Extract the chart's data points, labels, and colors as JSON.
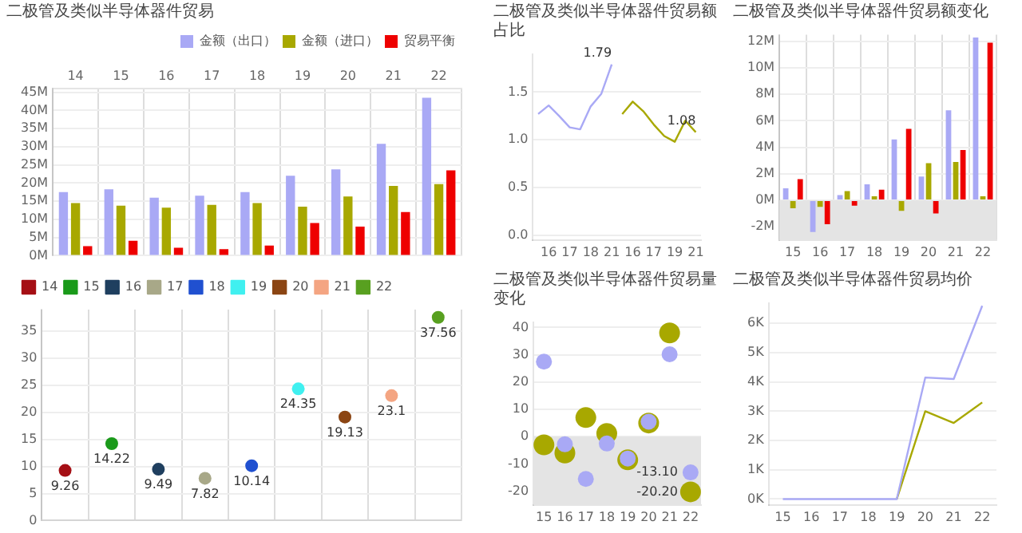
{
  "chart_data": [
    {
      "type": "bar",
      "title": "二极管及类似半导体器件贸易",
      "categories": [
        "14",
        "15",
        "16",
        "17",
        "18",
        "19",
        "20",
        "21",
        "22"
      ],
      "series": [
        {
          "name": "金额（出口）",
          "color": "#a9a9f5",
          "values": [
            17.5,
            18.3,
            16.0,
            16.5,
            17.5,
            22.0,
            23.8,
            30.8,
            43.5
          ]
        },
        {
          "name": "金额（进口）",
          "color": "#a8a800",
          "values": [
            14.5,
            13.8,
            13.2,
            14.0,
            14.5,
            13.5,
            16.3,
            19.2,
            19.7
          ]
        },
        {
          "name": "贸易平衡",
          "color": "#ee0000",
          "values": [
            2.6,
            4.1,
            2.2,
            1.8,
            2.8,
            9.0,
            8.0,
            12.0,
            23.5
          ]
        }
      ],
      "ylim": [
        0,
        46
      ],
      "yticks": [
        {
          "value": 0,
          "label": "0M"
        },
        {
          "value": 5,
          "label": "5M"
        },
        {
          "value": 10,
          "label": "10M"
        },
        {
          "value": 15,
          "label": "15M"
        },
        {
          "value": 20,
          "label": "20M"
        },
        {
          "value": 25,
          "label": "25M"
        },
        {
          "value": 30,
          "label": "30M"
        },
        {
          "value": 35,
          "label": "35M"
        },
        {
          "value": 40,
          "label": "40M"
        },
        {
          "value": 45,
          "label": "45M"
        }
      ],
      "grid": true,
      "legend": "top right"
    },
    {
      "type": "scatter",
      "categories": [
        null,
        null,
        null,
        null,
        null,
        null,
        null,
        null,
        null
      ],
      "series": [
        {
          "name": "14",
          "color": "#a50f15",
          "values": [
            9.26,
            null,
            null,
            null,
            null,
            null,
            null,
            null,
            null
          ]
        },
        {
          "name": "15",
          "color": "#1a9a1a",
          "values": [
            null,
            14.22,
            null,
            null,
            null,
            null,
            null,
            null,
            null
          ]
        },
        {
          "name": "16",
          "color": "#1f3f5f",
          "values": [
            null,
            null,
            9.49,
            null,
            null,
            null,
            null,
            null,
            null
          ]
        },
        {
          "name": "17",
          "color": "#a8a888",
          "values": [
            null,
            null,
            null,
            7.82,
            null,
            null,
            null,
            null,
            null
          ]
        },
        {
          "name": "18",
          "color": "#2050d0",
          "values": [
            null,
            null,
            null,
            null,
            10.14,
            null,
            null,
            null,
            null
          ]
        },
        {
          "name": "19",
          "color": "#40f0f0",
          "values": [
            null,
            null,
            null,
            null,
            null,
            24.35,
            null,
            null,
            null
          ]
        },
        {
          "name": "20",
          "color": "#8b4513",
          "values": [
            null,
            null,
            null,
            null,
            null,
            null,
            19.13,
            null,
            null
          ]
        },
        {
          "name": "21",
          "color": "#f4a582",
          "values": [
            null,
            null,
            null,
            null,
            null,
            null,
            null,
            23.1,
            null
          ]
        },
        {
          "name": "22",
          "color": "#58a020",
          "values": [
            null,
            null,
            null,
            null,
            null,
            null,
            null,
            null,
            37.56
          ]
        }
      ],
      "data_labels": true,
      "ylim": [
        0,
        39
      ],
      "yticks": [
        0,
        5,
        10,
        15,
        20,
        25,
        30,
        35
      ],
      "grid": true,
      "legend": "top left",
      "tick_labels": "y"
    },
    {
      "type": "line",
      "title": "二极管及类似半导体器件贸易额占比",
      "categories": [
        null,
        "16",
        null,
        "17",
        null,
        "18",
        null,
        "21",
        null,
        "16",
        null,
        "17",
        null,
        "19",
        null,
        "21"
      ],
      "series": [
        {
          "color": "#a9a9f5",
          "values": [
            1.27,
            1.36,
            1.25,
            1.13,
            1.11,
            1.35,
            1.48,
            1.79,
            null,
            null,
            null,
            null,
            null,
            null,
            null,
            null
          ],
          "value_labels": [
            null,
            null,
            null,
            null,
            null,
            null,
            null,
            "1.79",
            null,
            null,
            null,
            null,
            null,
            null,
            null,
            null
          ]
        },
        {
          "color": "#a8a800",
          "values": [
            null,
            null,
            null,
            null,
            null,
            null,
            null,
            null,
            1.27,
            1.4,
            1.3,
            1.16,
            1.04,
            0.98,
            1.2,
            1.08
          ],
          "value_labels": [
            null,
            null,
            null,
            null,
            null,
            null,
            null,
            null,
            null,
            null,
            null,
            null,
            null,
            null,
            null,
            "1.08"
          ]
        }
      ],
      "ylim": [
        -0.05,
        1.9
      ],
      "yticks": [
        {
          "value": 0,
          "label": "0.0"
        },
        {
          "value": 0.5,
          "label": "0.5"
        },
        {
          "value": 1,
          "label": "1.0"
        },
        {
          "value": 1.5,
          "label": "1.5"
        }
      ],
      "grid": "y"
    },
    {
      "type": "bar",
      "title": "二极管及类似半导体器件贸易额变化",
      "categories": [
        "15",
        "16",
        "17",
        "18",
        "19",
        "20",
        "21",
        "22"
      ],
      "series": [
        {
          "color": "#a9a9f5",
          "values": [
            0.9,
            -2.4,
            0.4,
            1.2,
            4.6,
            1.8,
            6.8,
            12.3
          ]
        },
        {
          "color": "#a8a800",
          "values": [
            -0.6,
            -0.5,
            0.7,
            0.3,
            -0.8,
            2.8,
            2.9,
            0.3
          ]
        },
        {
          "color": "#ee0000",
          "values": [
            1.6,
            -1.8,
            -0.4,
            0.8,
            5.4,
            -1.0,
            3.8,
            11.9
          ]
        }
      ],
      "ylim": [
        -3,
        12.5
      ],
      "yticks": [
        {
          "value": -2,
          "label": "-2M"
        },
        {
          "value": 0,
          "label": "0M"
        },
        {
          "value": 2,
          "label": "2M"
        },
        {
          "value": 4,
          "label": "4M"
        },
        {
          "value": 6,
          "label": "6M"
        },
        {
          "value": 8,
          "label": "8M"
        },
        {
          "value": 10,
          "label": "10M"
        },
        {
          "value": 12,
          "label": "12M"
        }
      ],
      "bands": [
        {
          "axis": "y",
          "from": -3,
          "to": 0,
          "color": "#e4e4e4"
        }
      ],
      "grid": true
    },
    {
      "type": "scatter",
      "title": "二极管及类似半导体器件贸易量变化",
      "categories": [
        "15",
        "16",
        "17",
        "18",
        "19",
        "20",
        "21",
        "22"
      ],
      "series": [
        {
          "color": "#a9a9f5",
          "values": [
            27.5,
            -2.8,
            -15.5,
            -2.5,
            -8.0,
            5.5,
            30.2,
            -13.1
          ],
          "value_labels": [
            null,
            null,
            null,
            null,
            null,
            null,
            null,
            "-13.10"
          ]
        },
        {
          "color": "#a8a800",
          "values": [
            -3.0,
            -6.0,
            7.0,
            1.2,
            -8.5,
            5.0,
            38.0,
            -20.2
          ],
          "value_labels": [
            null,
            null,
            null,
            null,
            null,
            null,
            null,
            "-20.20"
          ]
        }
      ],
      "ylim": [
        -25,
        42
      ],
      "yticks": [
        -20,
        -10,
        0,
        10,
        20,
        30,
        40
      ],
      "bands": [
        {
          "axis": "y",
          "from": -25,
          "to": 0,
          "color": "#e4e4e4"
        }
      ],
      "grid": "y"
    },
    {
      "type": "line",
      "title": "二极管及类似半导体器件贸易均价",
      "categories": [
        "15",
        "16",
        "17",
        "18",
        "19",
        "20",
        "21",
        "22"
      ],
      "series": [
        {
          "color": "#a9a9f5",
          "values": [
            0,
            0,
            0,
            0,
            0,
            4.15,
            4.1,
            6.6
          ]
        },
        {
          "color": "#a8a800",
          "values": [
            null,
            null,
            null,
            null,
            0,
            3.0,
            2.6,
            3.3
          ]
        }
      ],
      "ylim": [
        -0.2,
        6.7
      ],
      "yticks": [
        {
          "value": 0,
          "label": "0K"
        },
        {
          "value": 1,
          "label": "1K"
        },
        {
          "value": 2,
          "label": "2K"
        },
        {
          "value": 3,
          "label": "3K"
        },
        {
          "value": 4,
          "label": "4K"
        },
        {
          "value": 5,
          "label": "5K"
        },
        {
          "value": 6,
          "label": "6K"
        }
      ],
      "grid": "y"
    }
  ]
}
